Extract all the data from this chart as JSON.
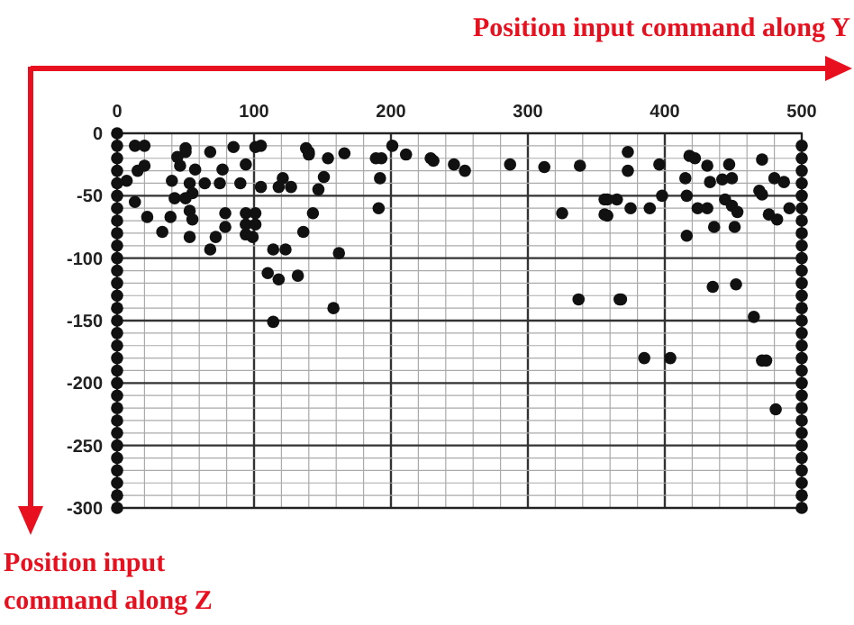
{
  "chart_data": {
    "type": "scatter",
    "xlabel": "Position input command along Y",
    "ylabel": "Position input command along Z",
    "xlim": [
      0,
      500
    ],
    "ylim": [
      -300,
      0
    ],
    "xticks": [
      0,
      {
        "value": 20,
        "label": null
      },
      {
        "value": 40,
        "label": null
      },
      {
        "value": 60,
        "label": null
      },
      {
        "value": 80,
        "label": null
      },
      100,
      {
        "value": 120,
        "label": null
      },
      {
        "value": 140,
        "label": null
      },
      {
        "value": 160,
        "label": null
      },
      {
        "value": 180,
        "label": null
      },
      200,
      {
        "value": 220,
        "label": null
      },
      {
        "value": 240,
        "label": null
      },
      {
        "value": 260,
        "label": null
      },
      {
        "value": 280,
        "label": null
      },
      300,
      {
        "value": 320,
        "label": null
      },
      {
        "value": 340,
        "label": null
      },
      {
        "value": 360,
        "label": null
      },
      {
        "value": 380,
        "label": null
      },
      400,
      {
        "value": 420,
        "label": null
      },
      {
        "value": 440,
        "label": null
      },
      {
        "value": 460,
        "label": null
      },
      {
        "value": 480,
        "label": null
      },
      500
    ],
    "yticks": [
      0,
      {
        "value": -10,
        "label": null
      },
      {
        "value": -20,
        "label": null
      },
      {
        "value": -30,
        "label": null
      },
      {
        "value": -40,
        "label": null
      },
      -50,
      {
        "value": -60,
        "label": null
      },
      {
        "value": -70,
        "label": null
      },
      {
        "value": -80,
        "label": null
      },
      {
        "value": -90,
        "label": null
      },
      -100,
      {
        "value": -110,
        "label": null
      },
      {
        "value": -120,
        "label": null
      },
      {
        "value": -130,
        "label": null
      },
      {
        "value": -140,
        "label": null
      },
      -150,
      {
        "value": -160,
        "label": null
      },
      {
        "value": -170,
        "label": null
      },
      {
        "value": -180,
        "label": null
      },
      {
        "value": -190,
        "label": null
      },
      -200,
      {
        "value": -210,
        "label": null
      },
      {
        "value": -220,
        "label": null
      },
      {
        "value": -230,
        "label": null
      },
      {
        "value": -240,
        "label": null
      },
      -250,
      {
        "value": -260,
        "label": null
      },
      {
        "value": -270,
        "label": null
      },
      {
        "value": -280,
        "label": null
      },
      {
        "value": -290,
        "label": null
      },
      -300
    ],
    "grid": true,
    "marker": "circle",
    "series": [
      {
        "color": "#111111",
        "x": [
          13,
          20,
          50,
          50,
          68,
          85,
          101,
          105,
          138,
          140,
          140,
          154,
          166,
          20,
          15,
          7,
          44,
          46,
          57,
          77,
          94,
          40,
          53,
          64,
          75,
          90,
          105,
          118,
          127,
          121,
          151,
          147,
          13,
          42,
          50,
          53,
          55,
          22,
          39,
          55,
          79,
          94,
          101,
          143,
          94,
          101,
          79,
          33,
          53,
          94,
          99,
          136,
          72,
          68,
          114,
          123,
          162,
          110,
          118,
          132,
          158,
          114,
          189,
          193,
          192,
          191,
          201,
          211,
          229,
          231,
          246,
          254,
          287,
          312,
          338,
          325,
          356,
          365,
          358,
          337,
          367,
          373,
          373,
          396,
          418,
          422,
          431,
          447,
          471,
          415,
          433,
          442,
          449,
          480,
          487,
          469,
          471,
          398,
          416,
          389,
          375,
          358,
          356,
          424,
          431,
          444,
          449,
          453,
          476,
          482,
          491,
          436,
          451,
          416,
          435,
          452,
          368,
          465,
          385,
          404,
          471,
          474,
          481,
          0,
          0,
          0,
          0,
          0,
          0,
          0,
          0,
          0,
          0,
          0,
          0,
          0,
          0,
          0,
          0,
          0,
          0,
          0,
          0,
          0,
          0,
          0,
          0,
          0,
          0,
          0,
          0,
          0,
          0,
          0,
          500,
          500,
          500,
          500,
          500,
          500,
          500,
          500,
          500,
          500,
          500,
          500,
          500,
          500,
          500,
          500,
          500,
          500,
          500,
          500,
          500,
          500,
          500,
          500,
          500,
          500,
          500,
          500,
          500,
          500
        ],
        "values": [
          -10,
          -10,
          -12,
          -15,
          -15,
          -11,
          -11,
          -10,
          -12,
          -15,
          -17,
          -20,
          -16,
          -26,
          -30,
          -38,
          -19,
          -26,
          -29,
          -29,
          -25,
          -38,
          -40,
          -40,
          -40,
          -40,
          -43,
          -43,
          -43,
          -36,
          -35,
          -45,
          -55,
          -52,
          -52,
          -62,
          -48,
          -67,
          -67,
          -69,
          -64,
          -64,
          -64,
          -64,
          -73,
          -73,
          -75,
          -79,
          -83,
          -81,
          -83,
          -79,
          -83,
          -93,
          -93,
          -93,
          -96,
          -112,
          -117,
          -114,
          -140,
          -151,
          -20,
          -20,
          -36,
          -60,
          -10,
          -17,
          -20,
          -22,
          -25,
          -30,
          -25,
          -27,
          -26,
          -64,
          -53,
          -53,
          -66,
          -133,
          -133,
          -15,
          -30,
          -25,
          -18,
          -20,
          -26,
          -25,
          -21,
          -36,
          -39,
          -37,
          -36,
          -36,
          -39,
          -46,
          -49,
          -50,
          -50,
          -60,
          -60,
          -53,
          -65,
          -60,
          -60,
          -53,
          -58,
          -63,
          -65,
          -69,
          -60,
          -75,
          -75,
          -82,
          -123,
          -121,
          -133,
          -147,
          -180,
          -180,
          -182,
          -182,
          -221,
          0,
          -10,
          -20,
          -30,
          -40,
          -50,
          -60,
          -70,
          -80,
          -90,
          -100,
          -110,
          -120,
          -130,
          -140,
          -150,
          -160,
          -170,
          -180,
          -190,
          -200,
          -210,
          -220,
          -230,
          -240,
          -250,
          -260,
          -270,
          -280,
          -290,
          -300,
          -10,
          -20,
          -30,
          -40,
          -50,
          -60,
          -70,
          -80,
          -90,
          -100,
          -110,
          -120,
          -130,
          -140,
          -150,
          -160,
          -170,
          -180,
          -190,
          -200,
          -210,
          -220,
          -230,
          -240,
          -250,
          -260,
          -270,
          -280,
          -290,
          -300
        ]
      }
    ]
  }
}
